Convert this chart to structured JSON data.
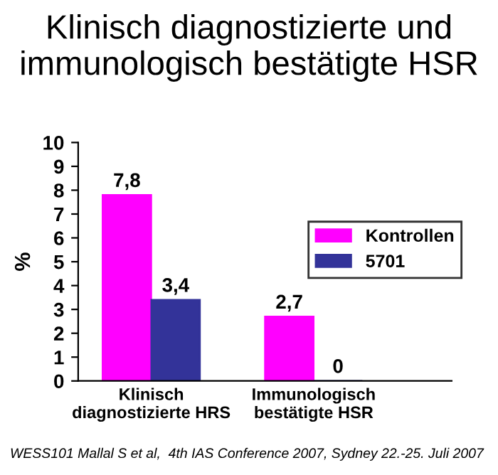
{
  "chart_data": {
    "type": "bar",
    "title": "Klinisch diagnostizierte und\nimmunologisch bestätigte HSR",
    "categories": [
      "Klinisch\ndiagnostizierte HRS",
      "Immunologisch\nbestätigte HSR"
    ],
    "series": [
      {
        "name": "Kontrollen",
        "color": "#ff00ff",
        "values": [
          7.8,
          2.7
        ],
        "value_labels": [
          "7,8",
          "2,7"
        ]
      },
      {
        "name": "5701",
        "color": "#333399",
        "values": [
          3.4,
          0
        ],
        "value_labels": [
          "3,4",
          "0"
        ]
      }
    ],
    "ylabel": "%",
    "ylim": [
      0,
      10
    ],
    "yticks": [
      0,
      1,
      2,
      3,
      4,
      5,
      6,
      7,
      8,
      9,
      10
    ],
    "grid": false,
    "legend": "right",
    "annotations": [
      "WESS101 Mallal S et al,  4th IAS Conference 2007, Sydney 22.-25. Juli 2007"
    ]
  }
}
